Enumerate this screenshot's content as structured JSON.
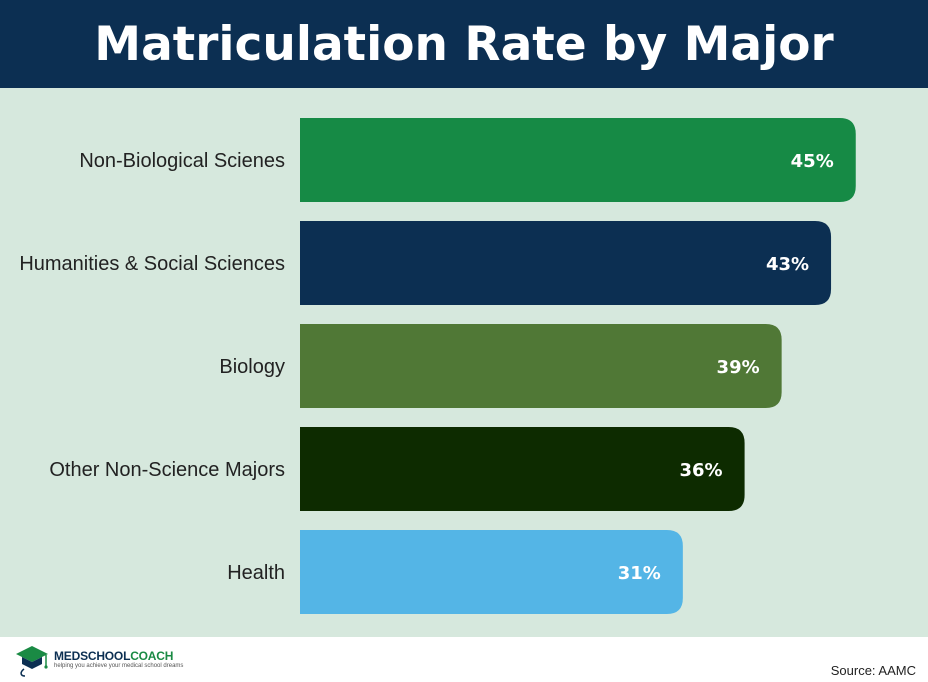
{
  "chart_data": {
    "type": "bar",
    "orientation": "horizontal",
    "title": "Matriculation Rate by Major",
    "categories": [
      "Non-Biological Scienes",
      "Humanities & Social Sciences",
      "Biology",
      "Other Non-Science Majors",
      "Health"
    ],
    "values": [
      45,
      43,
      39,
      36,
      31
    ],
    "value_labels": [
      "45%",
      "43%",
      "39%",
      "36%",
      "31%"
    ],
    "bar_colors": [
      "#168a45",
      "#0c2f52",
      "#507836",
      "#0d2b00",
      "#54b5e6"
    ],
    "unit": "%",
    "grid": false,
    "legend": "none"
  },
  "colors": {
    "header_bg": "#0c2f52",
    "plot_bg": "#d6e8dd",
    "accent_green": "#1a8a44"
  },
  "footer": {
    "logo_name_part1": "MEDSCHOOL",
    "logo_name_part2": "COACH",
    "logo_tagline": "helping you achieve your medical school dreams",
    "source": "Source: AAMC"
  }
}
